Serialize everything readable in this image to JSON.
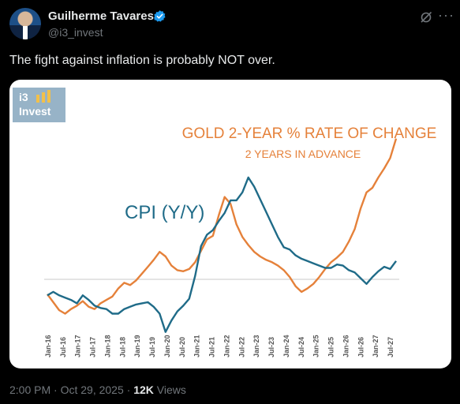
{
  "author": {
    "name": "Guilherme Tavares",
    "handle": "@i3_invest"
  },
  "tweet": {
    "text": "The fight against inflation is probably NOT over."
  },
  "meta": {
    "time": "2:00 PM",
    "sep1": "·",
    "date": "Oct 29, 2025",
    "sep2": "·",
    "views_count": "12K",
    "views_label": "Views"
  },
  "icons": {
    "verified": "verified-badge-icon",
    "grok": "grok-icon",
    "more": "more-options-icon"
  },
  "colors": {
    "cpi": "#1f6b88",
    "gold": "#e5813a"
  },
  "logo": {
    "top": "i3",
    "bottom": "Invest"
  },
  "chart_data": {
    "type": "line",
    "title": "GOLD 2-YEAR % RATE OF CHANGE",
    "subtitle": "2 YEARS IN ADVANCE",
    "series_labels": [
      "CPI (Y/Y)"
    ],
    "x_tick_labels": [
      "Jan-16",
      "Jul-16",
      "Jan-17",
      "Jul-17",
      "Jan-18",
      "Jul-18",
      "Jan-19",
      "Jul-19",
      "Jan-20",
      "Jul-20",
      "Jan-21",
      "Jul-21",
      "Jan-22",
      "Jul-22",
      "Jan-23",
      "Jul-23",
      "Jan-24",
      "Jul-24",
      "Jan-25",
      "Jul-25",
      "Jan-26",
      "Jul-26",
      "Jan-27",
      "Jul-27"
    ],
    "series": [
      {
        "name": "CPI (Y/Y)",
        "color": "#1f6b88",
        "values": [
          -1.4,
          -1.1,
          -1.4,
          -1.6,
          -1.8,
          -2.1,
          -1.4,
          -1.8,
          -2.3,
          -2.5,
          -2.6,
          -3.0,
          -3.0,
          -2.6,
          -2.4,
          -2.2,
          -2.1,
          -2.0,
          -2.4,
          -3.0,
          -4.6,
          -3.6,
          -2.8,
          -2.3,
          -1.7,
          0.3,
          2.9,
          3.9,
          4.3,
          5.1,
          5.8,
          6.9,
          6.9,
          7.6,
          8.9,
          8.1,
          7.0,
          5.9,
          4.8,
          3.7,
          2.8,
          2.6,
          2.1,
          1.8,
          1.6,
          1.4,
          1.2,
          1.0,
          1.0,
          1.3,
          1.2,
          0.8,
          0.6,
          0.1,
          -0.4,
          0.2,
          0.7,
          1.1,
          0.9,
          1.6
        ]
      },
      {
        "name": "Gold 2-Year % Rate of Change (2 years in advance)",
        "color": "#e5813a",
        "values": [
          -1.3,
          -2.0,
          -2.7,
          -3.0,
          -2.6,
          -2.3,
          -1.9,
          -2.4,
          -2.6,
          -2.1,
          -1.8,
          -1.5,
          -0.8,
          -0.3,
          -0.5,
          -0.1,
          0.5,
          1.1,
          1.7,
          2.4,
          2.0,
          1.2,
          0.8,
          0.7,
          0.9,
          1.5,
          2.5,
          3.5,
          3.8,
          5.6,
          7.2,
          6.6,
          4.8,
          3.7,
          3.0,
          2.4,
          2.0,
          1.7,
          1.5,
          1.2,
          0.8,
          0.2,
          -0.6,
          -1.1,
          -0.8,
          -0.4,
          0.2,
          0.9,
          1.5,
          1.9,
          2.4,
          3.3,
          4.4,
          6.2,
          7.6,
          8.0,
          8.9,
          9.7,
          10.6,
          12.3
        ]
      }
    ],
    "zero_line": true,
    "grid": false,
    "legend": "none"
  }
}
